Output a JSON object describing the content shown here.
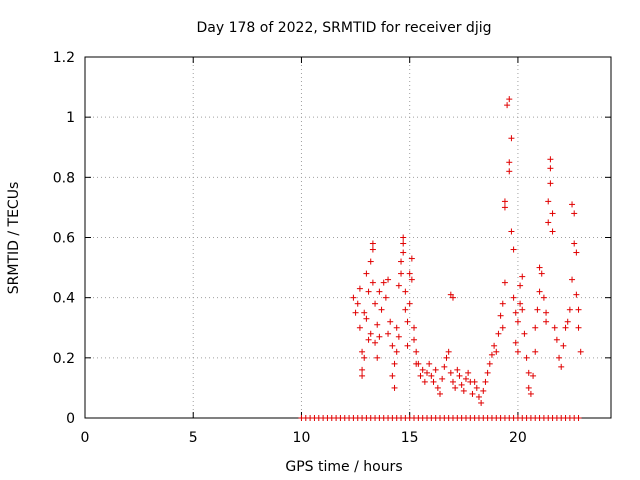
{
  "chart_data": {
    "type": "scatter",
    "title": "Day 178 of 2022, SRMTID for receiver djig",
    "xlabel": "GPS time / hours",
    "ylabel": "SRMTID / TECUs",
    "xlim": [
      0,
      24.3
    ],
    "ylim": [
      0,
      1.2
    ],
    "x_ticks": [
      0,
      5,
      10,
      15,
      20
    ],
    "y_ticks": [
      0,
      0.2,
      0.4,
      0.6,
      0.8,
      1,
      1.2
    ],
    "x_tick_labels": [
      "0",
      "5",
      "10",
      "15",
      "20"
    ],
    "y_tick_labels": [
      "0",
      "0.2",
      "0.4",
      "0.6",
      "0.8",
      "1",
      "1.2"
    ],
    "grid": true,
    "marker": "+",
    "color": "#e00000",
    "series": [
      {
        "name": "SRMTID",
        "points": [
          [
            10.0,
            0
          ],
          [
            10.2,
            0
          ],
          [
            10.4,
            0
          ],
          [
            10.6,
            0
          ],
          [
            10.8,
            0
          ],
          [
            11.0,
            0
          ],
          [
            11.2,
            0
          ],
          [
            11.4,
            0
          ],
          [
            11.6,
            0
          ],
          [
            11.8,
            0
          ],
          [
            12.0,
            0
          ],
          [
            12.2,
            0
          ],
          [
            12.4,
            0
          ],
          [
            12.6,
            0
          ],
          [
            12.8,
            0
          ],
          [
            13.0,
            0
          ],
          [
            13.2,
            0
          ],
          [
            13.4,
            0
          ],
          [
            13.6,
            0
          ],
          [
            13.8,
            0
          ],
          [
            14.0,
            0
          ],
          [
            14.2,
            0
          ],
          [
            14.4,
            0
          ],
          [
            14.6,
            0
          ],
          [
            14.8,
            0
          ],
          [
            15.0,
            0
          ],
          [
            15.2,
            0
          ],
          [
            15.4,
            0
          ],
          [
            15.6,
            0
          ],
          [
            15.8,
            0
          ],
          [
            16.0,
            0
          ],
          [
            16.2,
            0
          ],
          [
            16.4,
            0
          ],
          [
            16.6,
            0
          ],
          [
            16.8,
            0
          ],
          [
            17.0,
            0
          ],
          [
            17.2,
            0
          ],
          [
            17.4,
            0
          ],
          [
            17.6,
            0
          ],
          [
            17.8,
            0
          ],
          [
            18.0,
            0
          ],
          [
            18.2,
            0
          ],
          [
            18.4,
            0
          ],
          [
            18.6,
            0
          ],
          [
            18.8,
            0
          ],
          [
            19.0,
            0
          ],
          [
            19.2,
            0
          ],
          [
            19.4,
            0
          ],
          [
            19.6,
            0
          ],
          [
            19.8,
            0
          ],
          [
            20.0,
            0
          ],
          [
            20.2,
            0
          ],
          [
            20.4,
            0
          ],
          [
            20.6,
            0
          ],
          [
            20.8,
            0
          ],
          [
            21.0,
            0
          ],
          [
            21.2,
            0
          ],
          [
            21.4,
            0
          ],
          [
            21.6,
            0
          ],
          [
            21.8,
            0
          ],
          [
            22.0,
            0
          ],
          [
            22.2,
            0
          ],
          [
            22.4,
            0
          ],
          [
            22.6,
            0
          ],
          [
            22.8,
            0
          ],
          [
            12.4,
            0.4
          ],
          [
            12.5,
            0.35
          ],
          [
            12.6,
            0.38
          ],
          [
            12.7,
            0.43
          ],
          [
            12.7,
            0.3
          ],
          [
            12.8,
            0.22
          ],
          [
            12.8,
            0.16
          ],
          [
            12.8,
            0.14
          ],
          [
            12.9,
            0.2
          ],
          [
            12.9,
            0.35
          ],
          [
            13.0,
            0.33
          ],
          [
            13.0,
            0.48
          ],
          [
            13.1,
            0.42
          ],
          [
            13.1,
            0.26
          ],
          [
            13.2,
            0.28
          ],
          [
            13.2,
            0.52
          ],
          [
            13.3,
            0.58
          ],
          [
            13.3,
            0.56
          ],
          [
            13.3,
            0.45
          ],
          [
            13.4,
            0.25
          ],
          [
            13.4,
            0.38
          ],
          [
            13.5,
            0.31
          ],
          [
            13.5,
            0.2
          ],
          [
            13.6,
            0.42
          ],
          [
            13.6,
            0.27
          ],
          [
            13.7,
            0.36
          ],
          [
            13.8,
            0.45
          ],
          [
            13.9,
            0.4
          ],
          [
            14.0,
            0.46
          ],
          [
            14.0,
            0.28
          ],
          [
            14.1,
            0.32
          ],
          [
            14.2,
            0.24
          ],
          [
            14.2,
            0.14
          ],
          [
            14.3,
            0.18
          ],
          [
            14.3,
            0.1
          ],
          [
            14.4,
            0.22
          ],
          [
            14.4,
            0.3
          ],
          [
            14.5,
            0.27
          ],
          [
            14.5,
            0.44
          ],
          [
            14.6,
            0.52
          ],
          [
            14.6,
            0.48
          ],
          [
            14.7,
            0.6
          ],
          [
            14.7,
            0.58
          ],
          [
            14.7,
            0.55
          ],
          [
            14.8,
            0.42
          ],
          [
            14.8,
            0.36
          ],
          [
            14.9,
            0.32
          ],
          [
            14.9,
            0.24
          ],
          [
            15.0,
            0.38
          ],
          [
            15.0,
            0.48
          ],
          [
            15.1,
            0.53
          ],
          [
            15.1,
            0.46
          ],
          [
            15.2,
            0.3
          ],
          [
            15.2,
            0.26
          ],
          [
            15.3,
            0.22
          ],
          [
            15.3,
            0.18
          ],
          [
            15.4,
            0.18
          ],
          [
            15.5,
            0.14
          ],
          [
            15.6,
            0.16
          ],
          [
            15.7,
            0.12
          ],
          [
            15.8,
            0.15
          ],
          [
            15.9,
            0.18
          ],
          [
            16.0,
            0.14
          ],
          [
            16.1,
            0.12
          ],
          [
            16.2,
            0.16
          ],
          [
            16.3,
            0.1
          ],
          [
            16.4,
            0.08
          ],
          [
            16.5,
            0.13
          ],
          [
            16.6,
            0.17
          ],
          [
            16.7,
            0.2
          ],
          [
            16.8,
            0.22
          ],
          [
            16.9,
            0.15
          ],
          [
            17.0,
            0.12
          ],
          [
            17.1,
            0.1
          ],
          [
            17.2,
            0.16
          ],
          [
            17.3,
            0.14
          ],
          [
            17.4,
            0.11
          ],
          [
            17.5,
            0.09
          ],
          [
            17.6,
            0.13
          ],
          [
            17.7,
            0.15
          ],
          [
            17.8,
            0.12
          ],
          [
            17.9,
            0.08
          ],
          [
            18.0,
            0.12
          ],
          [
            18.1,
            0.1
          ],
          [
            18.2,
            0.07
          ],
          [
            18.3,
            0.05
          ],
          [
            18.4,
            0.09
          ],
          [
            18.5,
            0.12
          ],
          [
            18.6,
            0.15
          ],
          [
            18.7,
            0.18
          ],
          [
            18.8,
            0.21
          ],
          [
            18.9,
            0.24
          ],
          [
            19.0,
            0.22
          ],
          [
            16.9,
            0.41
          ],
          [
            17.0,
            0.4
          ],
          [
            19.1,
            0.28
          ],
          [
            19.2,
            0.34
          ],
          [
            19.3,
            0.3
          ],
          [
            19.3,
            0.38
          ],
          [
            19.4,
            0.45
          ],
          [
            19.4,
            0.7
          ],
          [
            19.4,
            0.72
          ],
          [
            19.5,
            1.04
          ],
          [
            19.6,
            1.06
          ],
          [
            19.6,
            0.85
          ],
          [
            19.6,
            0.82
          ],
          [
            19.7,
            0.93
          ],
          [
            19.7,
            0.62
          ],
          [
            19.8,
            0.56
          ],
          [
            19.8,
            0.4
          ],
          [
            19.9,
            0.35
          ],
          [
            19.9,
            0.25
          ],
          [
            20.0,
            0.22
          ],
          [
            20.0,
            0.32
          ],
          [
            20.1,
            0.38
          ],
          [
            20.1,
            0.44
          ],
          [
            20.2,
            0.47
          ],
          [
            20.2,
            0.36
          ],
          [
            20.3,
            0.28
          ],
          [
            20.4,
            0.2
          ],
          [
            20.5,
            0.15
          ],
          [
            20.5,
            0.1
          ],
          [
            20.6,
            0.08
          ],
          [
            20.7,
            0.14
          ],
          [
            20.8,
            0.22
          ],
          [
            20.8,
            0.3
          ],
          [
            20.9,
            0.36
          ],
          [
            21.0,
            0.42
          ],
          [
            21.0,
            0.5
          ],
          [
            21.1,
            0.48
          ],
          [
            21.2,
            0.4
          ],
          [
            21.3,
            0.32
          ],
          [
            21.3,
            0.35
          ],
          [
            21.4,
            0.65
          ],
          [
            21.4,
            0.72
          ],
          [
            21.5,
            0.86
          ],
          [
            21.5,
            0.83
          ],
          [
            21.5,
            0.78
          ],
          [
            21.6,
            0.62
          ],
          [
            21.6,
            0.68
          ],
          [
            21.7,
            0.3
          ],
          [
            21.8,
            0.26
          ],
          [
            21.9,
            0.2
          ],
          [
            22.0,
            0.17
          ],
          [
            22.1,
            0.24
          ],
          [
            22.2,
            0.3
          ],
          [
            22.3,
            0.32
          ],
          [
            22.4,
            0.36
          ],
          [
            22.5,
            0.46
          ],
          [
            22.5,
            0.71
          ],
          [
            22.6,
            0.68
          ],
          [
            22.6,
            0.58
          ],
          [
            22.7,
            0.55
          ],
          [
            22.7,
            0.41
          ],
          [
            22.8,
            0.36
          ],
          [
            22.8,
            0.3
          ],
          [
            22.9,
            0.22
          ]
        ]
      }
    ]
  }
}
